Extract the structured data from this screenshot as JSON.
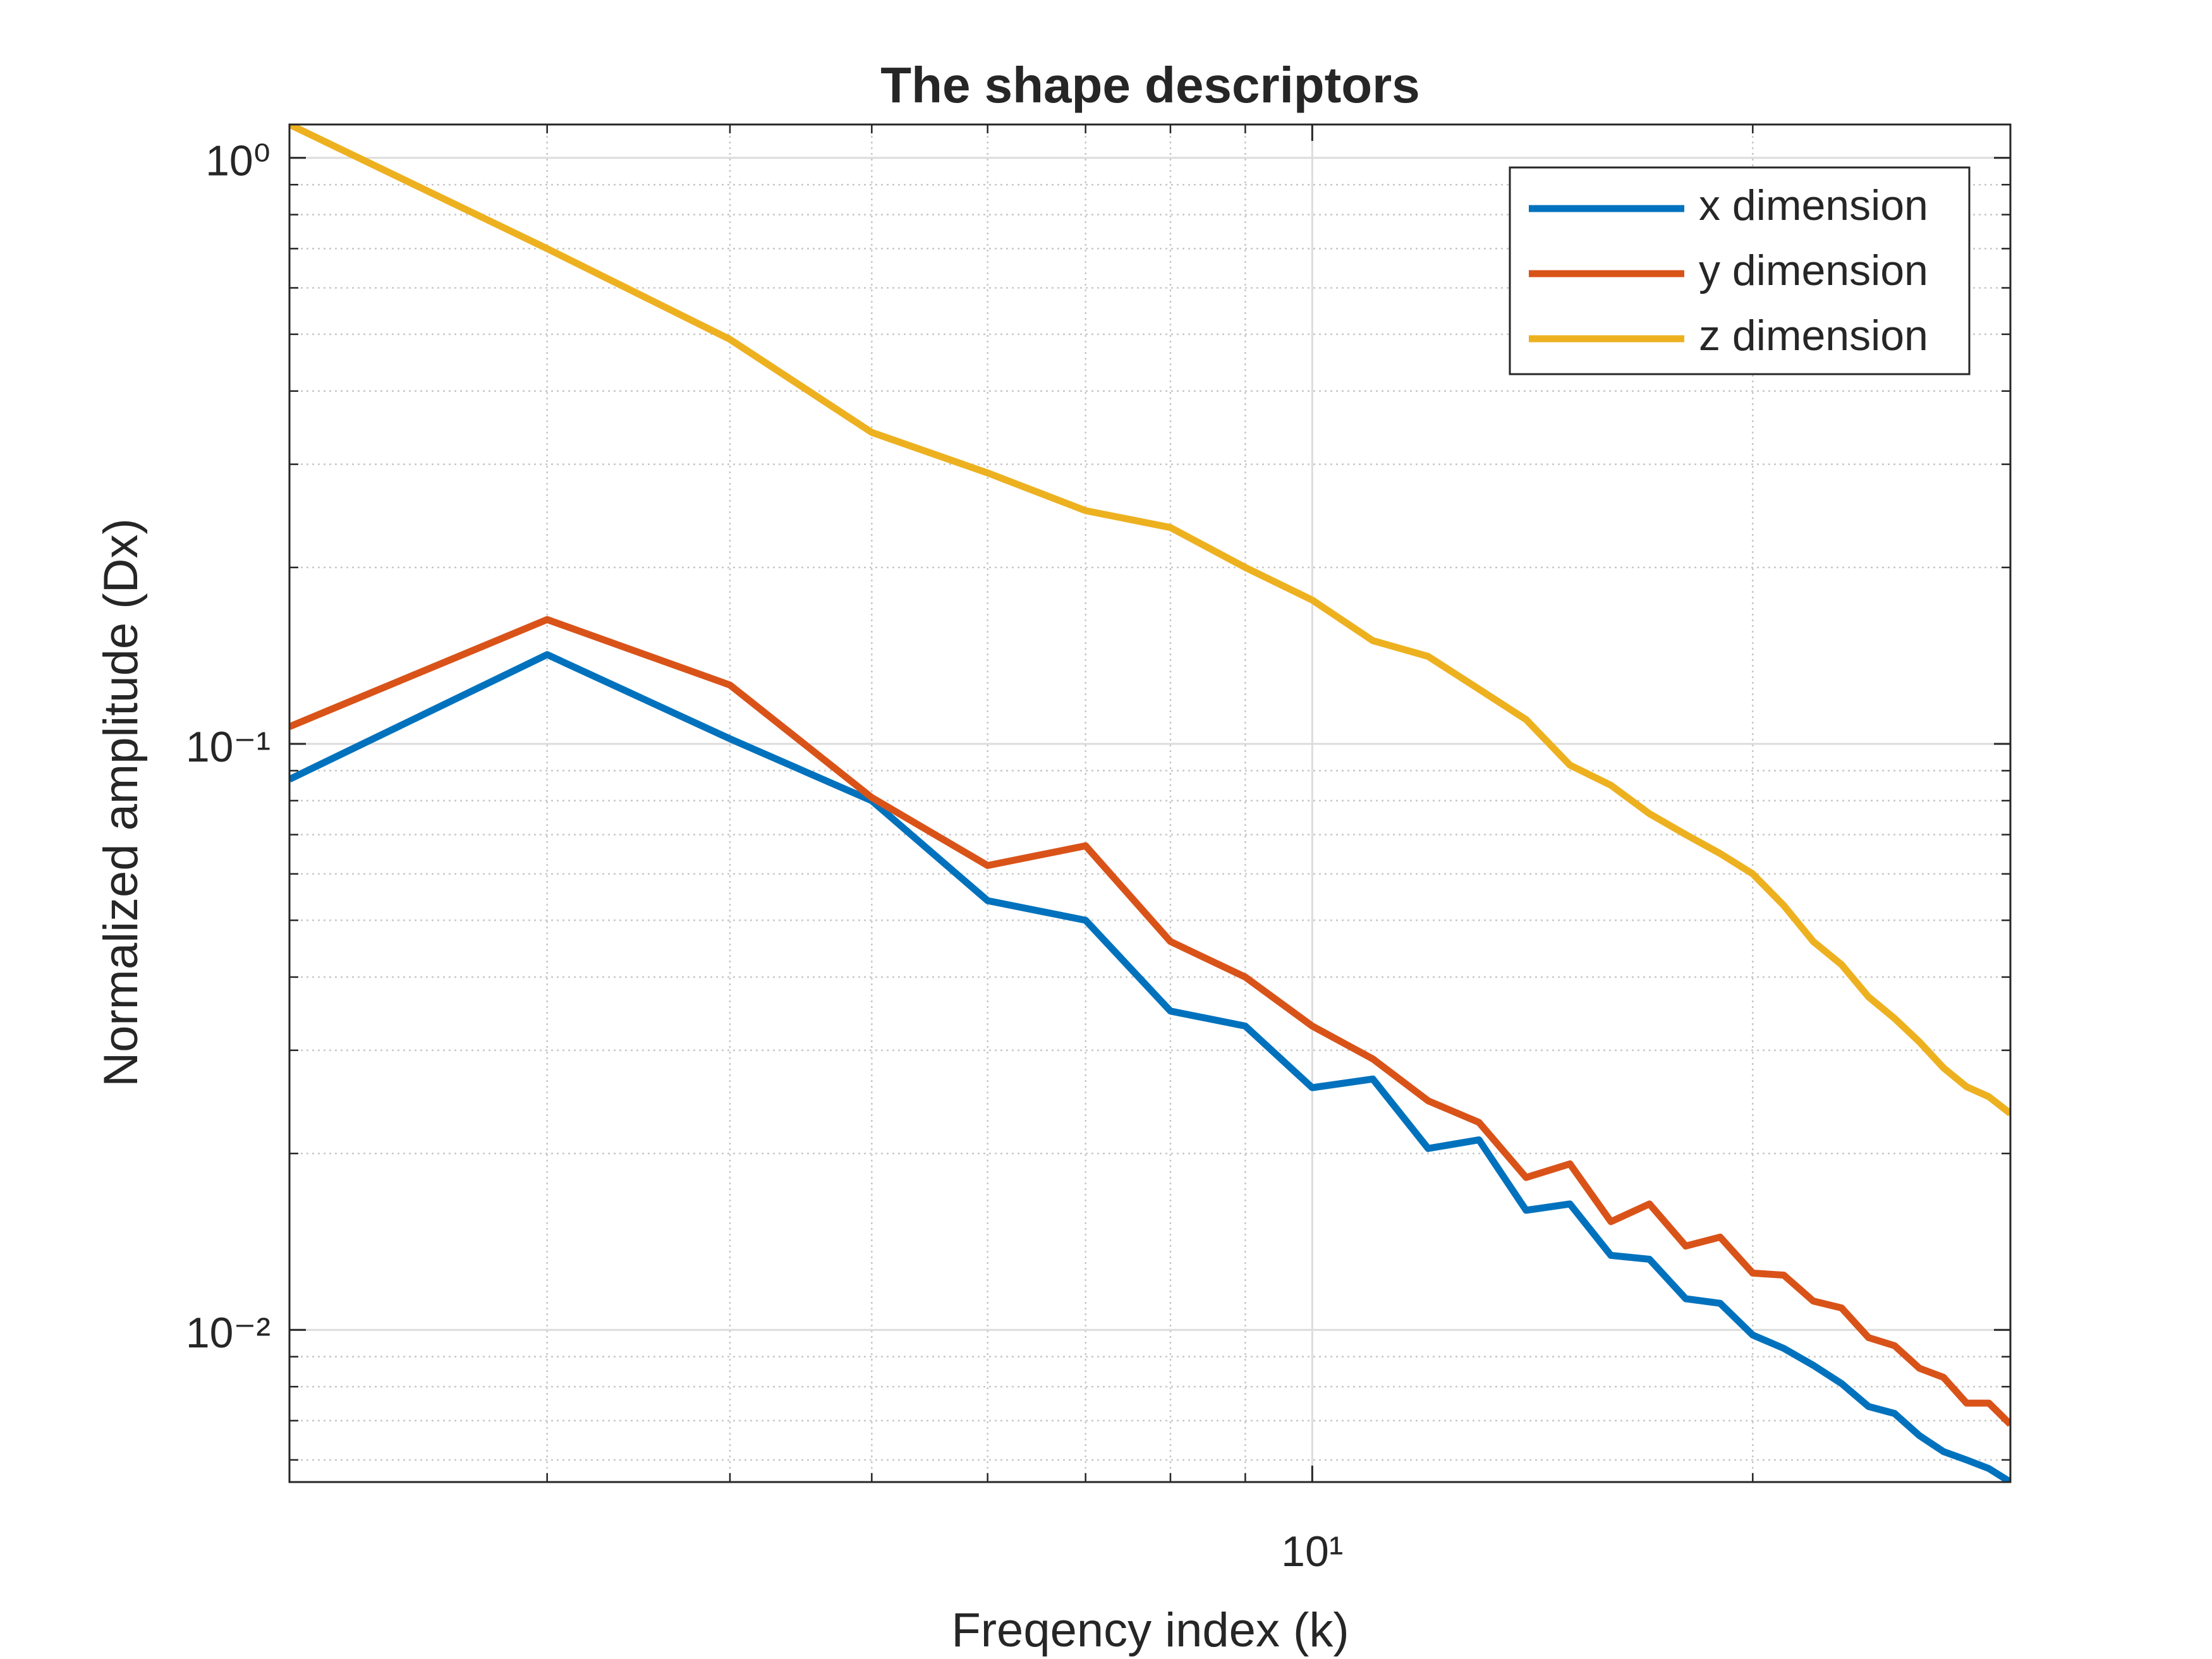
{
  "chart_data": {
    "type": "line",
    "title": "The shape descriptors",
    "xlabel": "Freqency index (k)",
    "ylabel": "Normalized amplitude (Dx)",
    "x": [
      2,
      3,
      4,
      5,
      6,
      7,
      8,
      9,
      10,
      11,
      12,
      13,
      14,
      15,
      16,
      17,
      18,
      19,
      20,
      21,
      22,
      23,
      24,
      25,
      26,
      27,
      28,
      29,
      30
    ],
    "series": [
      {
        "name": "x dimension",
        "color": "#0072BD",
        "values": [
          0.087,
          0.142,
          0.102,
          0.08,
          0.054,
          0.05,
          0.035,
          0.033,
          0.0259,
          0.0268,
          0.0204,
          0.0211,
          0.016,
          0.0164,
          0.0134,
          0.0132,
          0.0113,
          0.0111,
          0.0098,
          0.0093,
          0.0087,
          0.0081,
          0.0074,
          0.0072,
          0.0066,
          0.0062,
          0.006,
          0.0058,
          0.0055
        ]
      },
      {
        "name": "y dimension",
        "color": "#D95319",
        "values": [
          0.107,
          0.163,
          0.126,
          0.081,
          0.062,
          0.067,
          0.046,
          0.04,
          0.033,
          0.029,
          0.0246,
          0.0226,
          0.0182,
          0.0192,
          0.0153,
          0.0164,
          0.0139,
          0.0144,
          0.0125,
          0.0124,
          0.0112,
          0.0109,
          0.0097,
          0.0094,
          0.0086,
          0.0083,
          0.0075,
          0.0075,
          0.0069
        ]
      },
      {
        "name": "z dimension",
        "color": "#EDB120",
        "values": [
          1.14,
          0.7,
          0.49,
          0.34,
          0.29,
          0.25,
          0.234,
          0.2,
          0.176,
          0.15,
          0.141,
          0.124,
          0.11,
          0.092,
          0.085,
          0.076,
          0.07,
          0.065,
          0.06,
          0.053,
          0.046,
          0.042,
          0.037,
          0.034,
          0.031,
          0.028,
          0.026,
          0.025,
          0.0234
        ]
      }
    ],
    "xlim": [
      2,
      30
    ],
    "ylim": [
      0.0055,
      1.14
    ],
    "xticks": [
      {
        "value": 10,
        "label": "10¹"
      }
    ],
    "yticks": [
      {
        "value": 0.01,
        "label": "10⁻²"
      },
      {
        "value": 0.1,
        "label": "10⁻¹"
      },
      {
        "value": 1,
        "label": "10⁰"
      }
    ],
    "xscale": "log",
    "yscale": "log",
    "grid": true,
    "minor_grid": true,
    "legend": "northeast"
  }
}
